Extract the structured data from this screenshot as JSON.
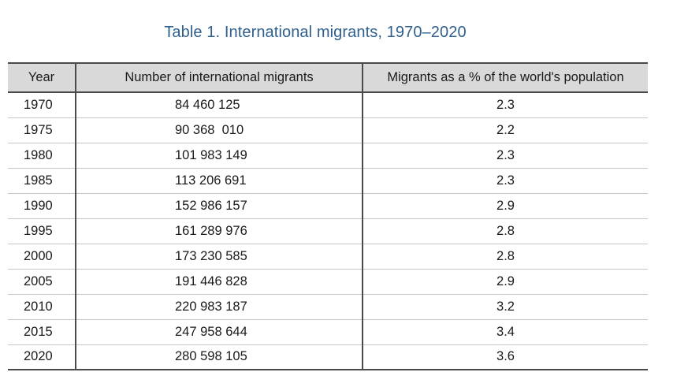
{
  "caption": "Table 1. International migrants, 1970–2020",
  "headers": {
    "year": "Year",
    "migrants": "Number of international migrants",
    "percent": "Migrants as a % of the world's population"
  },
  "rows": [
    {
      "year": "1970",
      "migrants": "84 460 125",
      "percent": "2.3"
    },
    {
      "year": "1975",
      "migrants": "90 368  010",
      "percent": "2.2"
    },
    {
      "year": "1980",
      "migrants": "101 983 149",
      "percent": "2.3"
    },
    {
      "year": "1985",
      "migrants": "113 206 691",
      "percent": "2.3"
    },
    {
      "year": "1990",
      "migrants": "152 986 157",
      "percent": "2.9"
    },
    {
      "year": "1995",
      "migrants": "161 289 976",
      "percent": "2.8"
    },
    {
      "year": "2000",
      "migrants": "173 230 585",
      "percent": "2.8"
    },
    {
      "year": "2005",
      "migrants": "191 446 828",
      "percent": "2.9"
    },
    {
      "year": "2010",
      "migrants": "220 983 187",
      "percent": "3.2"
    },
    {
      "year": "2015",
      "migrants": "247 958 644",
      "percent": "3.4"
    },
    {
      "year": "2020",
      "migrants": "280 598 105",
      "percent": "3.6"
    }
  ]
}
